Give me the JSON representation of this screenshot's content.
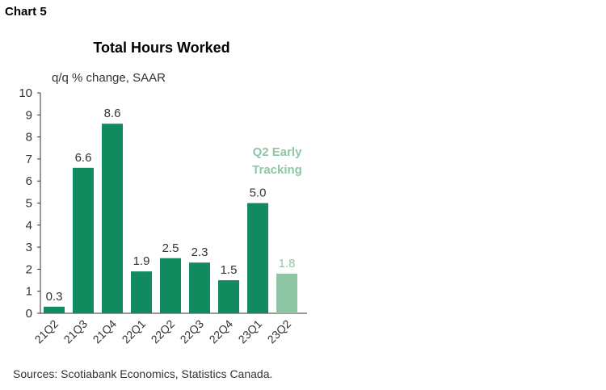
{
  "chart_label": "Chart 5",
  "source": "Sources: Scotiabank Economics, Statistics Canada.",
  "colors": {
    "bar": "#108a5e",
    "tracking": "#8ec6a5",
    "text": "#333333",
    "axis": "#333333"
  },
  "chart_data": {
    "type": "bar",
    "title": "Total Hours Worked",
    "ylabel": "q/q % change, SAAR",
    "xlabel": "",
    "ylim": [
      0,
      10
    ],
    "yticks": [
      0,
      1,
      2,
      3,
      4,
      5,
      6,
      7,
      8,
      9,
      10
    ],
    "categories": [
      "21Q2",
      "21Q3",
      "21Q4",
      "22Q1",
      "22Q2",
      "22Q3",
      "22Q4",
      "23Q1",
      "23Q2"
    ],
    "values": [
      0.3,
      6.6,
      8.6,
      1.9,
      2.5,
      2.3,
      1.5,
      5.0,
      1.8
    ],
    "value_labels": [
      "0.3",
      "6.6",
      "8.6",
      "1.9",
      "2.5",
      "2.3",
      "1.5",
      "5.0",
      "1.8"
    ],
    "highlight_index": 8,
    "annotation": [
      "Q2 Early",
      "Tracking"
    ]
  }
}
